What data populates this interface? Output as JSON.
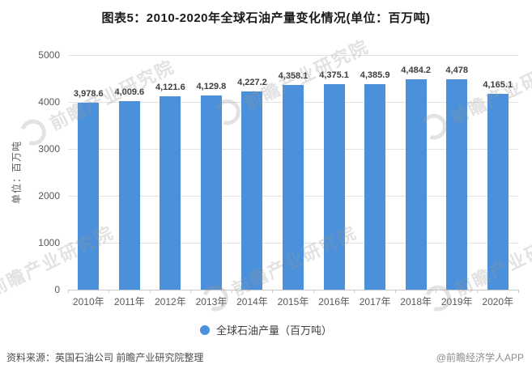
{
  "title": "图表5：2010-2020年全球石油产量变化情况(单位：百万吨)",
  "chart_data": {
    "type": "bar",
    "categories": [
      "2010年",
      "2011年",
      "2012年",
      "2013年",
      "2014年",
      "2015年",
      "2016年",
      "2017年",
      "2018年",
      "2019年",
      "2020年"
    ],
    "values": [
      3978.6,
      4009.6,
      4121.6,
      4129.8,
      4227.2,
      4358.1,
      4375.1,
      4385.9,
      4484.2,
      4478,
      4165.1
    ],
    "value_labels": [
      "3,978.6",
      "4,009.6",
      "4,121.6",
      "4,129.8",
      "4,227.2",
      "4,358.1",
      "4,375.1",
      "4,385.9",
      "4,484.2",
      "4,478",
      "4,165.1"
    ],
    "title": "图表5：2010-2020年全球石油产量变化情况(单位：百万吨)",
    "xlabel": "",
    "ylabel": "单位：百万吨",
    "yticks": [
      0,
      1000,
      2000,
      3000,
      4000,
      5000
    ],
    "ylim": [
      0,
      5000
    ],
    "grid": true,
    "legend_position": "bottom",
    "legend_label": "全球石油产量（百万吨）",
    "bar_color": "#4A90DA"
  },
  "watermark": {
    "text": "前瞻产业研究院"
  },
  "footer": {
    "source": "资料来源：英国石油公司 前瞻产业研究院整理",
    "credit": "@前瞻经济学人APP"
  }
}
